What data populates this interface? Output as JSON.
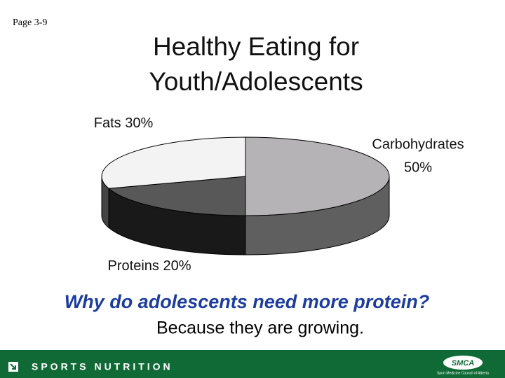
{
  "page_label": "Page 3-9",
  "chart_data": {
    "type": "pie3d",
    "title": [
      "Healthy Eating for",
      "Youth/Adolescents"
    ],
    "categories": [
      "Carbohydrates",
      "Proteins",
      "Fats"
    ],
    "values": [
      50,
      20,
      30
    ],
    "value_labels": [
      "50%",
      "20%",
      "30%"
    ],
    "colors": [
      "#b5b3b5",
      "#585858",
      "#f3f3f3"
    ]
  },
  "question": "Why do adolescents need more protein?",
  "answer": "Because they are growing.",
  "footer": {
    "title": "SPORTS NUTRITION",
    "logo": "SMCA",
    "logo_caption": "Sport Medicine Council of Alberta"
  }
}
